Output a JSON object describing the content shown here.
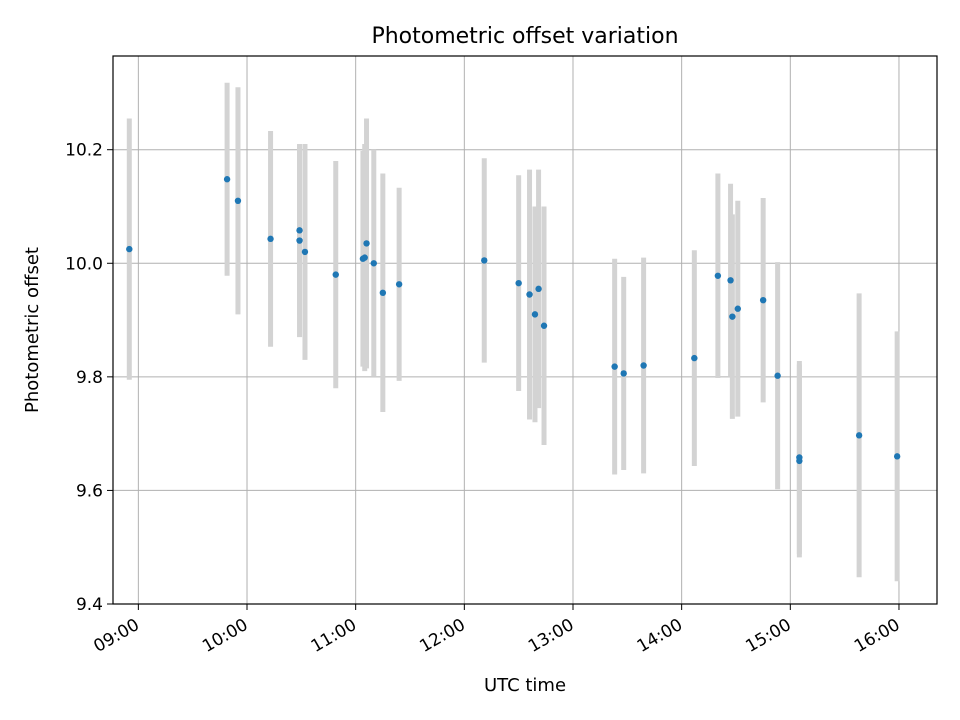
{
  "chart_data": {
    "type": "scatter",
    "title": "Photometric offset variation",
    "xlabel": "UTC time",
    "ylabel": "Photometric offset",
    "x_tick_labels": [
      "09:00",
      "10:00",
      "11:00",
      "12:00",
      "13:00",
      "14:00",
      "15:00",
      "16:00"
    ],
    "y_tick_labels": [
      "9.4",
      "9.6",
      "9.8",
      "10.0",
      "10.2"
    ],
    "y_ticks": [
      9.4,
      9.6,
      9.8,
      10.0,
      10.2
    ],
    "xlim": [
      "08:46",
      "16:21"
    ],
    "ylim": [
      9.4,
      10.365
    ],
    "grid": true,
    "point_color": "#1f77b4",
    "errorbar_color": "#d3d3d3",
    "series": [
      {
        "points": [
          {
            "x": "08:55",
            "y": 10.025,
            "err": 0.23
          },
          {
            "x": "09:49",
            "y": 10.148,
            "err": 0.17
          },
          {
            "x": "09:55",
            "y": 10.11,
            "err": 0.2
          },
          {
            "x": "10:13",
            "y": 10.043,
            "err": 0.19
          },
          {
            "x": "10:29",
            "y": 10.04,
            "err": 0.17
          },
          {
            "x": "10:29",
            "y": 10.058,
            "err": 0.15
          },
          {
            "x": "10:32",
            "y": 10.02,
            "err": 0.19
          },
          {
            "x": "10:49",
            "y": 9.98,
            "err": 0.2
          },
          {
            "x": "11:04",
            "y": 10.008,
            "err": 0.19
          },
          {
            "x": "11:05",
            "y": 10.01,
            "err": 0.2
          },
          {
            "x": "11:06",
            "y": 10.035,
            "err": 0.22
          },
          {
            "x": "11:10",
            "y": 10.0,
            "err": 0.2
          },
          {
            "x": "11:15",
            "y": 9.948,
            "err": 0.21
          },
          {
            "x": "11:24",
            "y": 9.963,
            "err": 0.17
          },
          {
            "x": "12:11",
            "y": 10.005,
            "err": 0.18
          },
          {
            "x": "12:30",
            "y": 9.965,
            "err": 0.19
          },
          {
            "x": "12:36",
            "y": 9.945,
            "err": 0.22
          },
          {
            "x": "12:39",
            "y": 9.91,
            "err": 0.19
          },
          {
            "x": "12:41",
            "y": 9.955,
            "err": 0.21
          },
          {
            "x": "12:44",
            "y": 9.89,
            "err": 0.21
          },
          {
            "x": "13:23",
            "y": 9.818,
            "err": 0.19
          },
          {
            "x": "13:28",
            "y": 9.806,
            "err": 0.17
          },
          {
            "x": "13:39",
            "y": 9.82,
            "err": 0.19
          },
          {
            "x": "14:07",
            "y": 9.833,
            "err": 0.19
          },
          {
            "x": "14:20",
            "y": 9.978,
            "err": 0.18
          },
          {
            "x": "14:27",
            "y": 9.97,
            "err": 0.17
          },
          {
            "x": "14:28",
            "y": 9.906,
            "err": 0.18
          },
          {
            "x": "14:31",
            "y": 9.92,
            "err": 0.19
          },
          {
            "x": "14:45",
            "y": 9.935,
            "err": 0.18
          },
          {
            "x": "14:53",
            "y": 9.802,
            "err": 0.2
          },
          {
            "x": "15:05",
            "y": 9.658,
            "err": 0.17
          },
          {
            "x": "15:05",
            "y": 9.652,
            "err": 0.17
          },
          {
            "x": "15:38",
            "y": 9.697,
            "err": 0.25
          },
          {
            "x": "15:59",
            "y": 9.66,
            "err": 0.22
          }
        ]
      }
    ]
  }
}
